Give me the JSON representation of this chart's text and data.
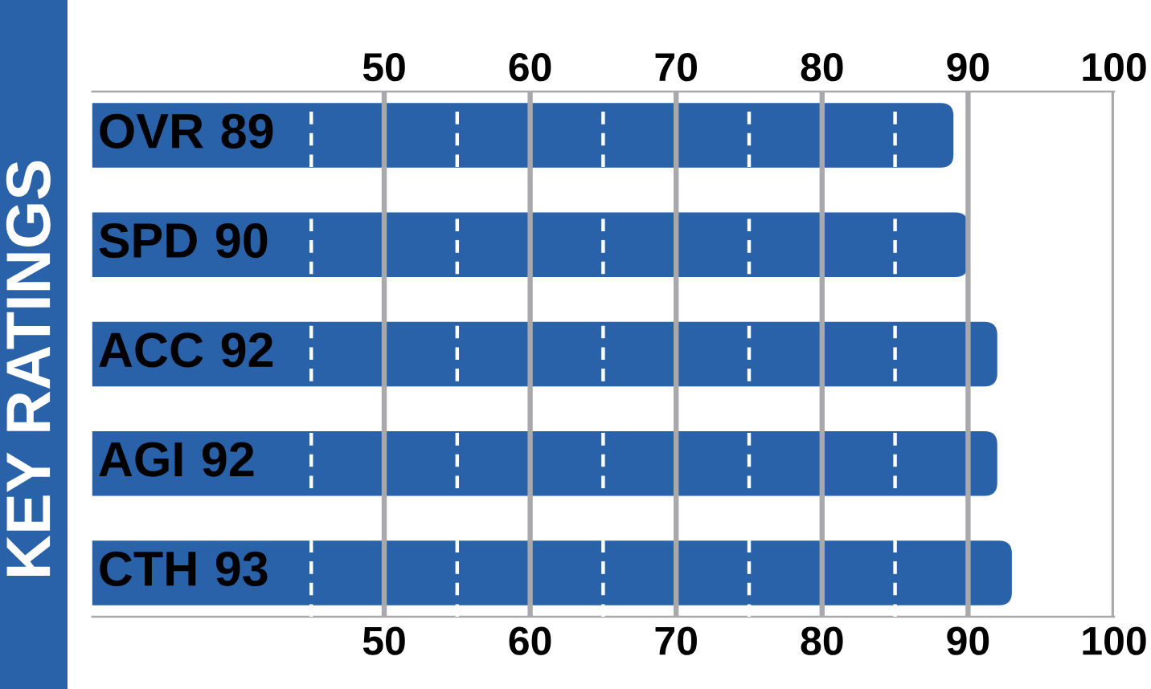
{
  "chart_data": {
    "type": "bar",
    "orientation": "horizontal",
    "title": "KEY RATINGS",
    "categories": [
      "OVR",
      "SPD",
      "ACC",
      "AGI",
      "CTH"
    ],
    "values": [
      89,
      90,
      92,
      92,
      93
    ],
    "color": "#2a62aa",
    "data_labels": true,
    "xlim": [
      30,
      100
    ],
    "xticks": [
      {
        "value": 45,
        "label": null
      },
      50,
      {
        "value": 55,
        "label": null
      },
      60,
      {
        "value": 65,
        "label": null
      },
      70,
      {
        "value": 75,
        "label": null
      },
      80,
      {
        "value": 85,
        "label": null
      },
      90,
      100
    ],
    "x2lim": [
      30,
      100
    ],
    "x2ticks": [
      50,
      60,
      70,
      80,
      90,
      100
    ],
    "grid": "x"
  }
}
